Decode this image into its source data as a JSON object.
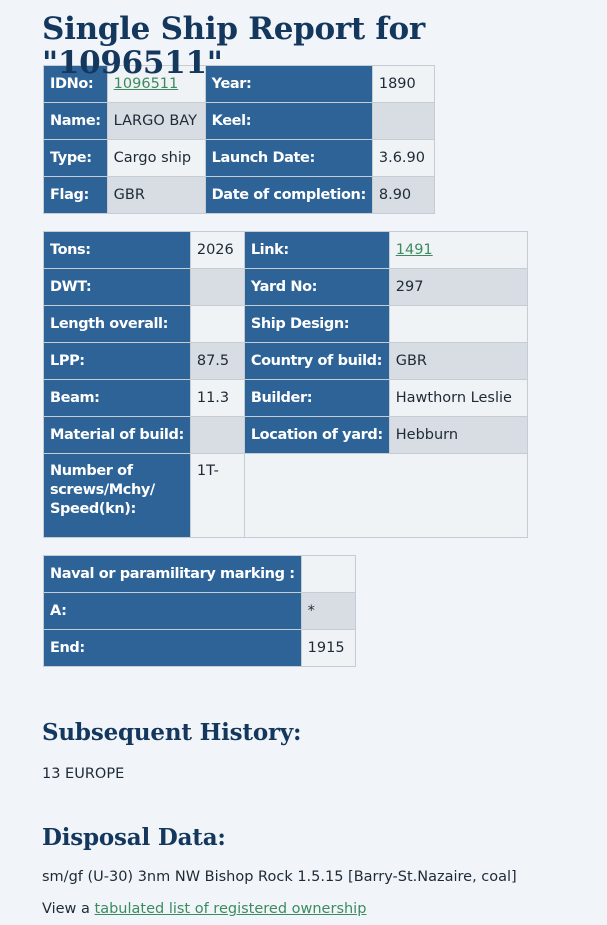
{
  "page_title": "Single Ship Report for \"1096511\"",
  "table1": {
    "idno_label": "IDNo:",
    "idno_value": "1096511",
    "year_label": "Year:",
    "year_value": "1890",
    "name_label": "Name:",
    "name_value": "LARGO BAY",
    "keel_label": "Keel:",
    "keel_value": "",
    "type_label": "Type:",
    "type_value": "Cargo ship",
    "launch_label": "Launch Date:",
    "launch_value": "3.6.90",
    "flag_label": "Flag:",
    "flag_value": "GBR",
    "completion_label": "Date of completion:",
    "completion_value": "8.90"
  },
  "table2": {
    "tons_label": "Tons:",
    "tons_value": "2026",
    "link_label": "Link:",
    "link_value": "1491",
    "dwt_label": "DWT:",
    "dwt_value": "",
    "yard_no_label": "Yard No:",
    "yard_no_value": "297",
    "loa_label": "Length overall:",
    "loa_value": "",
    "design_label": "Ship Design:",
    "design_value": "",
    "lpp_label": "LPP:",
    "lpp_value": "87.5",
    "country_label": "Country of build:",
    "country_value": "GBR",
    "beam_label": "Beam:",
    "beam_value": "11.3",
    "builder_label": "Builder:",
    "builder_value": "Hawthorn Leslie",
    "material_label": "Material of build:",
    "material_value": "",
    "location_label": "Location of yard:",
    "location_value": "Hebburn",
    "screws_label": "Number of screws/Mchy/ Speed(kn):",
    "screws_value": "1T-"
  },
  "table3": {
    "marking_label": "Naval or paramilitary marking :",
    "marking_value": "",
    "a_label": "A:",
    "a_value": "*",
    "end_label": "End:",
    "end_value": "1915"
  },
  "history": {
    "heading": "Subsequent History:",
    "text": "13 EUROPE"
  },
  "disposal": {
    "heading": "Disposal Data:",
    "text": "sm/gf (U-30) 3nm NW Bishop Rock 1.5.15 [Barry-St.Nazaire, coal]",
    "view_prefix": "View a ",
    "ownership_link": "tabulated list of registered ownership"
  },
  "colors": {
    "header_cell": "#2e6398",
    "heading_text": "#14375e",
    "link": "#3c8b5f",
    "page_bg": "#f1f5f9"
  }
}
